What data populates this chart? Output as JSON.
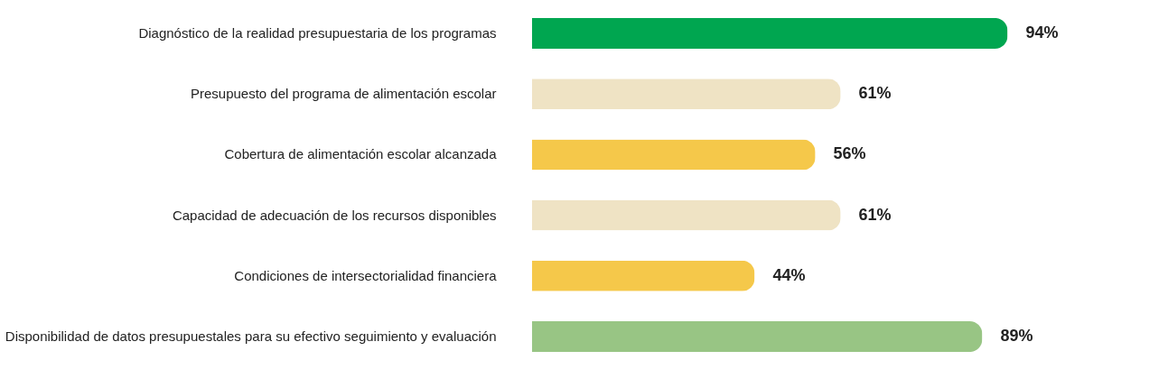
{
  "chart_data": {
    "type": "bar",
    "orientation": "horizontal",
    "categories": [
      "Diagnóstico de la realidad presupuestaria de los programas",
      "Presupuesto del programa de alimentación escolar",
      "Cobertura de alimentación escolar alcanzada",
      "Capacidad de adecuación de los recursos disponibles",
      "Condiciones de intersectorialidad financiera",
      "Disponibilidad de datos presupuestales para su efectivo seguimiento y evaluación"
    ],
    "values": [
      94,
      61,
      56,
      61,
      44,
      89
    ],
    "colors": [
      "#00a650",
      "#efe3c4",
      "#f5c84a",
      "#efe3c4",
      "#f5c84a",
      "#98c584"
    ],
    "value_labels": [
      "94%",
      "61%",
      "56%",
      "61%",
      "44%",
      "89%"
    ],
    "tick_labels": "y"
  }
}
